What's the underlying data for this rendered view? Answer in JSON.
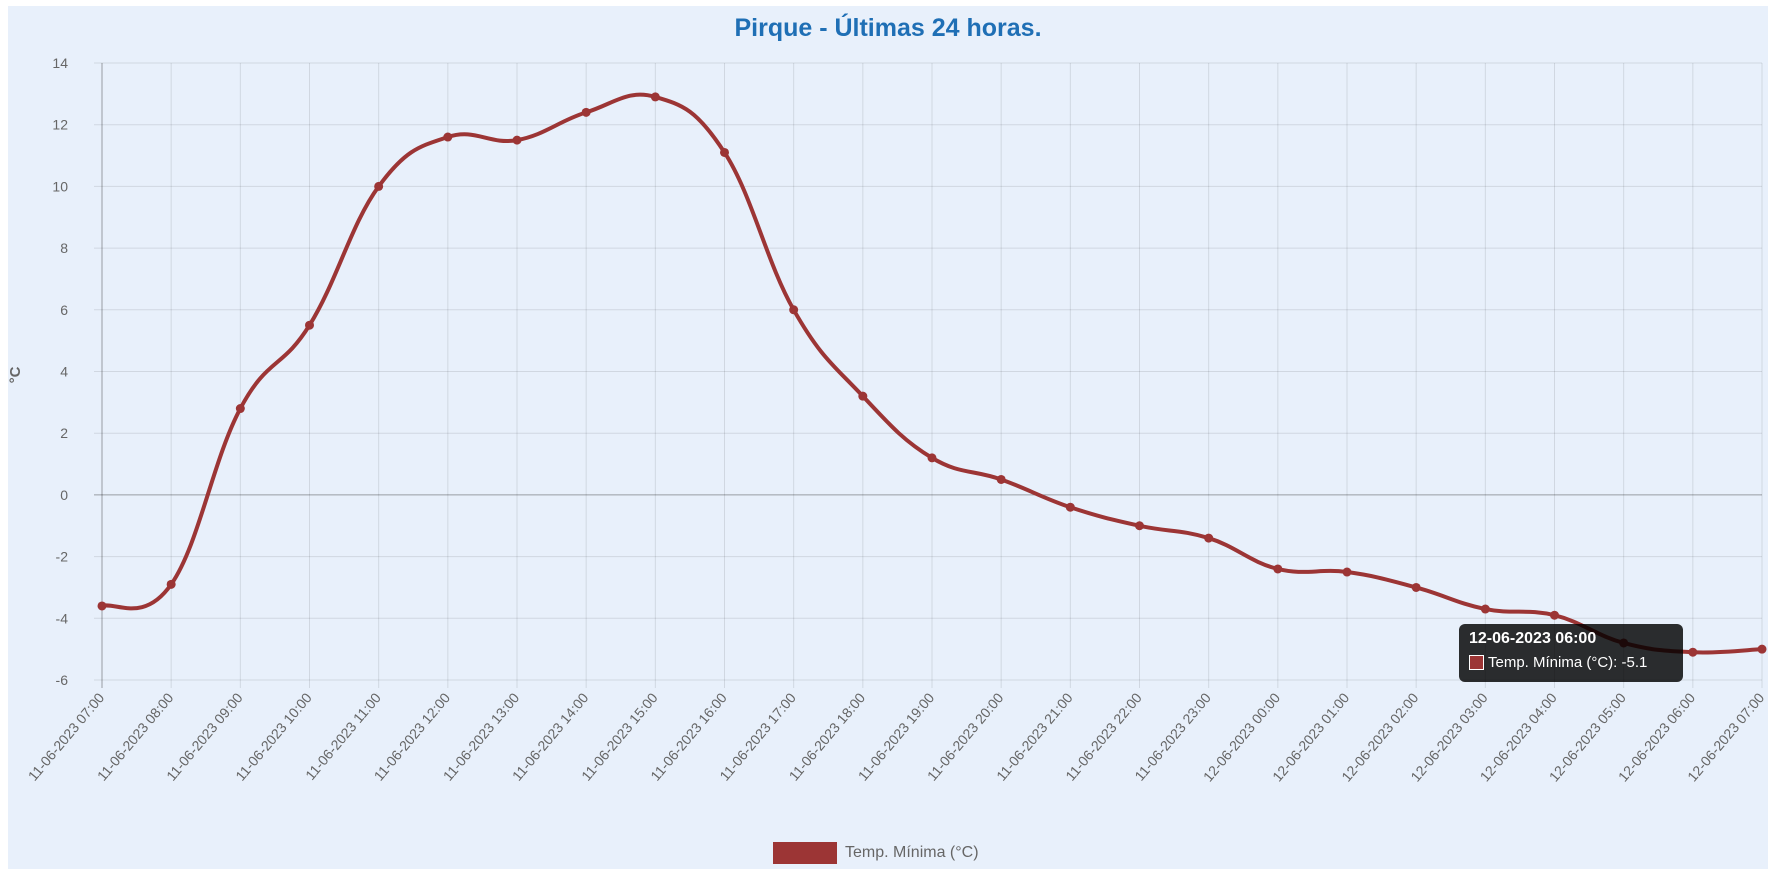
{
  "chart_data": {
    "type": "line",
    "title": "Pirque - Últimas 24 horas.",
    "xlabel": "",
    "ylabel": "°C",
    "ylim": [
      -6,
      14
    ],
    "yticks": [
      "14",
      "12",
      "10",
      "8",
      "6",
      "4",
      "2",
      "0",
      "-2",
      "-4",
      "-6"
    ],
    "grid": true,
    "legend_position": "bottom",
    "x": [
      "11-06-2023 07:00",
      "11-06-2023 08:00",
      "11-06-2023 09:00",
      "11-06-2023 10:00",
      "11-06-2023 11:00",
      "11-06-2023 12:00",
      "11-06-2023 13:00",
      "11-06-2023 14:00",
      "11-06-2023 15:00",
      "11-06-2023 16:00",
      "11-06-2023 17:00",
      "11-06-2023 18:00",
      "11-06-2023 19:00",
      "11-06-2023 20:00",
      "11-06-2023 21:00",
      "11-06-2023 22:00",
      "11-06-2023 23:00",
      "12-06-2023 00:00",
      "12-06-2023 01:00",
      "12-06-2023 02:00",
      "12-06-2023 03:00",
      "12-06-2023 04:00",
      "12-06-2023 05:00",
      "12-06-2023 06:00",
      "12-06-2023 07:00"
    ],
    "series": [
      {
        "name": "Temp. Mínima (°C)",
        "color": "#9c3535",
        "values": [
          -3.6,
          -2.9,
          2.8,
          5.5,
          10.0,
          11.6,
          11.5,
          12.4,
          12.9,
          11.1,
          6.0,
          3.2,
          1.2,
          0.5,
          -0.4,
          -1.0,
          -1.4,
          -2.4,
          -2.5,
          -3.0,
          -3.7,
          -3.9,
          -4.8,
          -5.1,
          -5.0
        ]
      }
    ]
  },
  "legend": {
    "label": "Temp. Mínima (°C)"
  },
  "tooltip": {
    "title": "12-06-2023 06:00",
    "text": "Temp. Mínima (°C): -5.1",
    "point_index": 23
  }
}
